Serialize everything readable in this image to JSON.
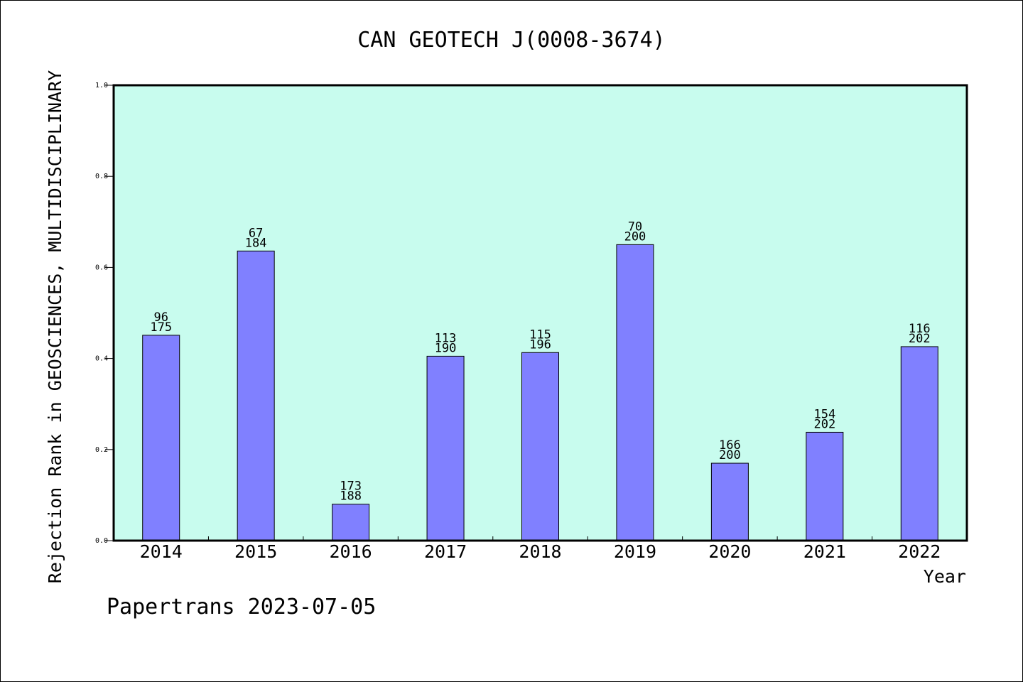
{
  "chart_data": {
    "type": "bar",
    "title": "CAN GEOTECH J(0008-3674)",
    "xlabel": "Year",
    "ylabel": "Rejection Rank in GEOSCIENCES, MULTIDISCIPLINARY",
    "categories": [
      "2014",
      "2015",
      "2016",
      "2017",
      "2018",
      "2019",
      "2020",
      "2021",
      "2022"
    ],
    "values": [
      0.451,
      0.636,
      0.08,
      0.405,
      0.413,
      0.65,
      0.17,
      0.238,
      0.426
    ],
    "labels_top": [
      "96",
      "67",
      "173",
      "113",
      "115",
      "70",
      "166",
      "154",
      "116"
    ],
    "labels_bottom": [
      "175",
      "184",
      "188",
      "190",
      "196",
      "200",
      "200",
      "202",
      "202"
    ],
    "ylim": [
      0,
      1.0
    ],
    "yticks": [
      "0.0",
      "0.2",
      "0.4",
      "0.6",
      "0.8",
      "1.0"
    ],
    "grid": false,
    "colors": {
      "plot_bg": "#c8fcee",
      "bar": "#8080ff",
      "bar_edge": "#000000"
    }
  },
  "footer": {
    "text": "Papertrans 2023-07-05"
  }
}
